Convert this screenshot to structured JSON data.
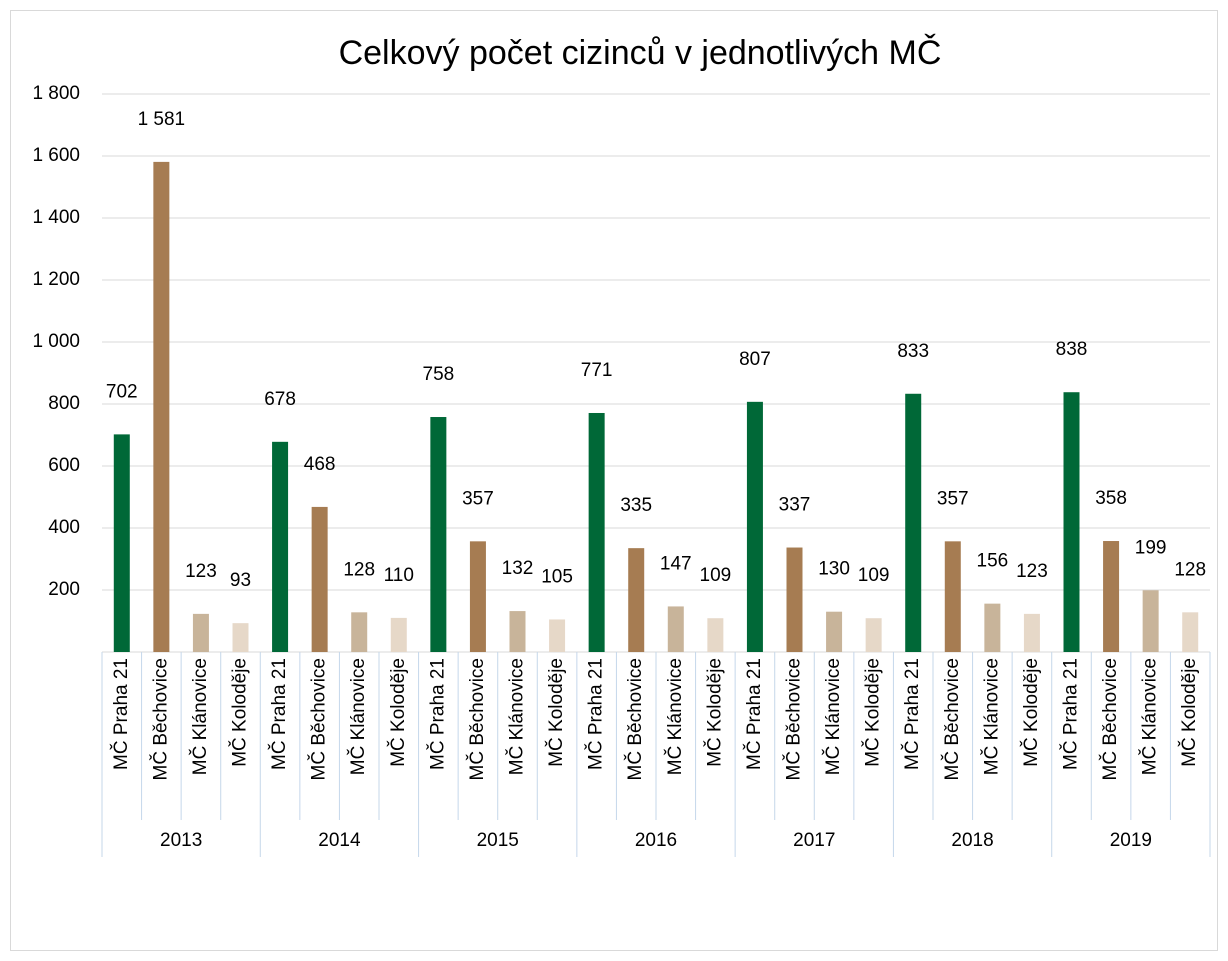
{
  "chart_data": {
    "type": "bar",
    "title": "Celkový počet cizinců v jednotlivých MČ",
    "categories": [
      "2013",
      "2014",
      "2015",
      "2016",
      "2017",
      "2018",
      "2019"
    ],
    "series": [
      {
        "name": "MČ Praha 21",
        "color": "#006837",
        "values": [
          702,
          678,
          758,
          771,
          807,
          833,
          838
        ]
      },
      {
        "name": "MČ Běchovice",
        "color": "#a67c52",
        "values": [
          1581,
          468,
          357,
          335,
          337,
          357,
          358
        ],
        "value_labels": [
          "1 581",
          "468",
          "357",
          "335",
          "337",
          "357",
          "358"
        ]
      },
      {
        "name": "MČ Klánovice",
        "color": "#c8b49a",
        "values": [
          123,
          128,
          132,
          147,
          130,
          156,
          199
        ]
      },
      {
        "name": "MČ Koloděje",
        "color": "#e6d8c8",
        "values": [
          93,
          110,
          105,
          109,
          109,
          123,
          128
        ]
      }
    ],
    "ylim": [
      0,
      1800
    ],
    "yticks": [
      200,
      400,
      600,
      800,
      {
        "value": 1000,
        "label": "1 000"
      },
      {
        "value": 1200,
        "label": "1 200"
      },
      {
        "value": 1400,
        "label": "1 400"
      },
      {
        "value": 1600,
        "label": "1 600"
      },
      {
        "value": 1800,
        "label": "1 800"
      }
    ],
    "grid": true
  }
}
